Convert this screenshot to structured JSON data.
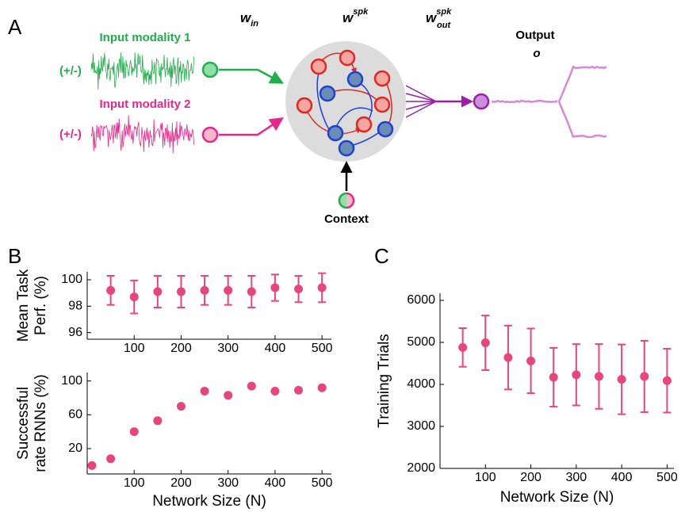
{
  "panel_a": {
    "panel_label": "A",
    "weights": [
      {
        "symbol": "w",
        "sub": "in"
      },
      {
        "symbol": "w",
        "sup": "spk"
      },
      {
        "symbol": "w",
        "sup": "spk",
        "sub": "out"
      }
    ],
    "output": {
      "title": "Output",
      "symbol": "o"
    },
    "inputs": [
      {
        "name": "Input modality 1",
        "sign": "(+/-)"
      },
      {
        "name": "Input modality 2",
        "sign": "(+/-)"
      }
    ],
    "context": "Context"
  },
  "chart_data": [
    {
      "type": "scatter",
      "panel_label": "B",
      "ylabel": [
        "Mean Task",
        "Perf. (%)"
      ],
      "x": [
        50,
        100,
        150,
        200,
        250,
        300,
        350,
        400,
        450,
        500
      ],
      "values": [
        99.2,
        98.7,
        99.1,
        99.1,
        99.2,
        99.2,
        99.1,
        99.4,
        99.3,
        99.4
      ],
      "errors": [
        1.1,
        1.25,
        1.2,
        1.2,
        1.1,
        1.1,
        1.2,
        1.0,
        1.0,
        1.1
      ],
      "color": "#e8457c",
      "xlim": [
        0,
        520
      ],
      "ylim": [
        95.5,
        100.6
      ],
      "xticks": [
        100,
        200,
        300,
        400,
        500
      ],
      "yticks": [
        96,
        98,
        100
      ]
    },
    {
      "type": "scatter",
      "xlabel": "Network Size (N)",
      "ylabel": [
        "Successful",
        "rate RNNs (%)"
      ],
      "x": [
        10,
        50,
        100,
        150,
        200,
        250,
        300,
        350,
        400,
        450,
        500
      ],
      "values": [
        0,
        8,
        40,
        53,
        70,
        88,
        83,
        94,
        88,
        89,
        92
      ],
      "color": "#e8457c",
      "xlim": [
        0,
        520
      ],
      "ylim": [
        -10,
        110
      ],
      "xticks": [
        100,
        200,
        300,
        400,
        500
      ],
      "yticks": [
        20,
        60,
        100
      ]
    },
    {
      "type": "scatter",
      "panel_label": "C",
      "xlabel": "Network Size (N)",
      "ylabel": [
        "Training Trials"
      ],
      "x": [
        50,
        100,
        150,
        200,
        250,
        300,
        350,
        400,
        450,
        500
      ],
      "values": [
        4880,
        4990,
        4640,
        4560,
        4170,
        4230,
        4190,
        4120,
        4190,
        4090
      ],
      "errors": [
        460,
        650,
        760,
        770,
        700,
        730,
        770,
        830,
        850,
        760
      ],
      "color": "#e8457c",
      "xlim": [
        0,
        515
      ],
      "ylim": [
        2000,
        6170
      ],
      "xticks": [
        100,
        200,
        300,
        400,
        500
      ],
      "yticks": [
        2000,
        3000,
        4000,
        5000,
        6000
      ]
    }
  ]
}
